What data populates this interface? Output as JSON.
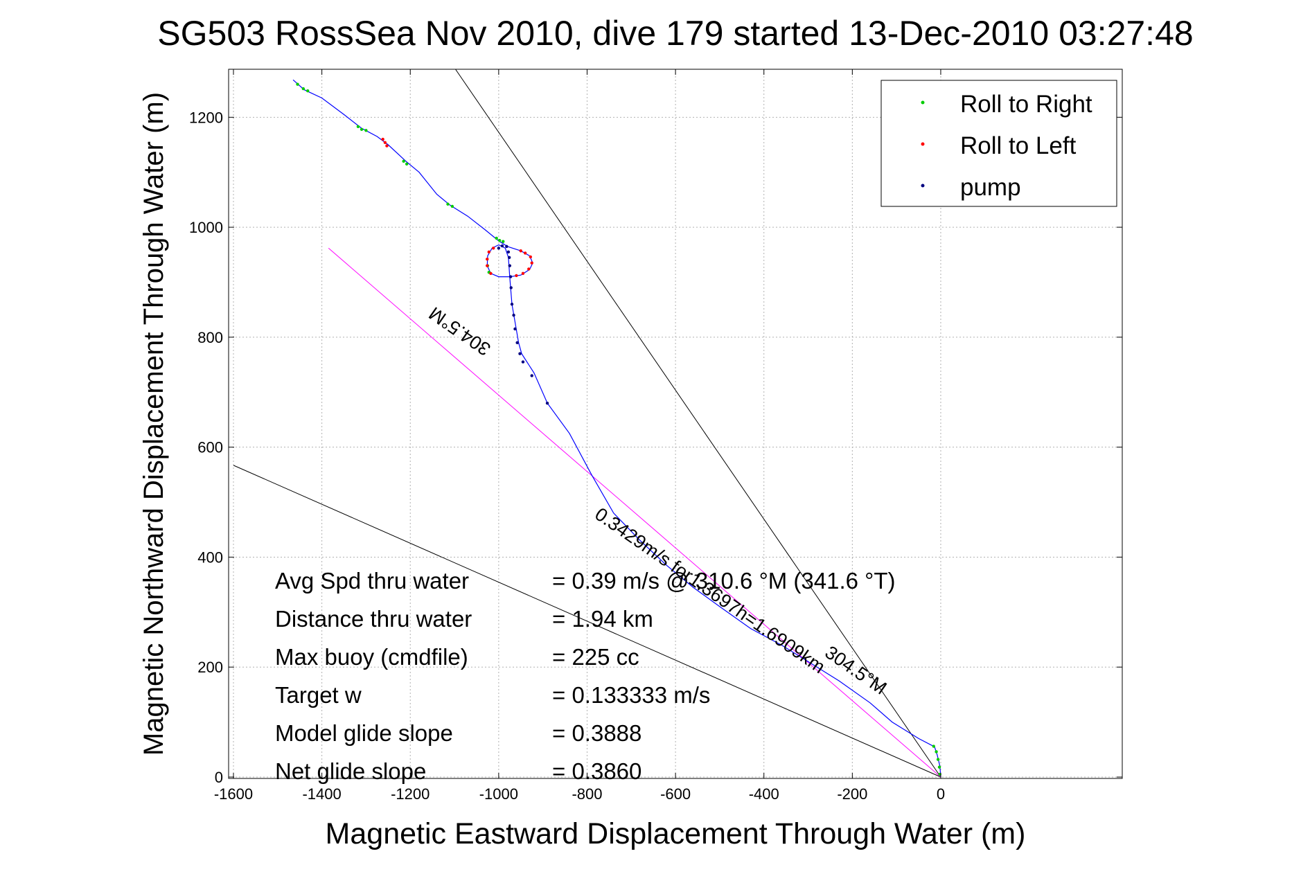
{
  "chart_data": {
    "type": "line",
    "title": "SG503 RossSea Nov 2010, dive 179 started 13-Dec-2010 03:27:48",
    "xlabel": "Magnetic Eastward Displacement Through Water (m)",
    "ylabel": "Magnetic Northward Displacement Through Water (m)",
    "xlim": [
      -1600,
      20
    ],
    "ylim": [
      0,
      1280
    ],
    "xticks": [
      -1600,
      -1400,
      -1200,
      -1000,
      -800,
      -600,
      -400,
      -200,
      0
    ],
    "yticks": [
      0,
      200,
      400,
      600,
      800,
      1000,
      1200
    ],
    "grid": true,
    "legend_position": "top-right",
    "legend": [
      {
        "name": "Roll to Right",
        "color": "#00cc00"
      },
      {
        "name": "Roll to Left",
        "color": "#ff0000"
      },
      {
        "name": "pump",
        "color": "#000080"
      }
    ],
    "track": {
      "color": "#0000ff",
      "points": [
        [
          0,
          0
        ],
        [
          -2,
          20
        ],
        [
          -8,
          40
        ],
        [
          -14,
          55
        ],
        [
          -50,
          70
        ],
        [
          -110,
          100
        ],
        [
          -160,
          135
        ],
        [
          -230,
          175
        ],
        [
          -300,
          210
        ],
        [
          -360,
          240
        ],
        [
          -430,
          270
        ],
        [
          -500,
          310
        ],
        [
          -560,
          345
        ],
        [
          -620,
          385
        ],
        [
          -680,
          430
        ],
        [
          -740,
          480
        ],
        [
          -790,
          550
        ],
        [
          -840,
          625
        ],
        [
          -890,
          680
        ],
        [
          -920,
          735
        ],
        [
          -948,
          770
        ],
        [
          -955,
          790
        ],
        [
          -970,
          860
        ],
        [
          -975,
          910
        ],
        [
          -978,
          945
        ],
        [
          -985,
          962
        ],
        [
          -1000,
          968
        ],
        [
          -1015,
          962
        ],
        [
          -1025,
          948
        ],
        [
          -1026,
          930
        ],
        [
          -1018,
          916
        ],
        [
          -1000,
          910
        ],
        [
          -975,
          910
        ],
        [
          -950,
          913
        ],
        [
          -930,
          923
        ],
        [
          -923,
          935
        ],
        [
          -930,
          948
        ],
        [
          -950,
          957
        ],
        [
          -980,
          965
        ],
        [
          -1000,
          975
        ],
        [
          -1030,
          995
        ],
        [
          -1070,
          1020
        ],
        [
          -1110,
          1040
        ],
        [
          -1140,
          1060
        ],
        [
          -1180,
          1100
        ],
        [
          -1210,
          1120
        ],
        [
          -1250,
          1150
        ],
        [
          -1275,
          1165
        ],
        [
          -1310,
          1180
        ],
        [
          -1350,
          1205
        ],
        [
          -1400,
          1235
        ],
        [
          -1440,
          1250
        ],
        [
          -1465,
          1268
        ]
      ]
    },
    "roll_right_points": [
      [
        -1455,
        1260
      ],
      [
        -1442,
        1252
      ],
      [
        -1432,
        1248
      ],
      [
        -1318,
        1183
      ],
      [
        -1310,
        1178
      ],
      [
        -1300,
        1176
      ],
      [
        -1215,
        1120
      ],
      [
        -1208,
        1115
      ],
      [
        -1115,
        1042
      ],
      [
        -1105,
        1038
      ],
      [
        -1005,
        980
      ],
      [
        -998,
        976
      ],
      [
        -990,
        974
      ],
      [
        -1025,
        930
      ],
      [
        -1022,
        918
      ],
      [
        -2,
        5
      ],
      [
        -3,
        18
      ],
      [
        -6,
        32
      ],
      [
        -10,
        46
      ],
      [
        -16,
        56
      ]
    ],
    "roll_left_points": [
      [
        -1262,
        1160
      ],
      [
        -1257,
        1154
      ],
      [
        -1253,
        1148
      ],
      [
        -1012,
        962
      ],
      [
        -1022,
        955
      ],
      [
        -1026,
        942
      ],
      [
        -1026,
        930
      ],
      [
        -1018,
        916
      ],
      [
        -960,
        912
      ],
      [
        -945,
        916
      ],
      [
        -932,
        924
      ],
      [
        -925,
        935
      ],
      [
        -928,
        946
      ],
      [
        -940,
        953
      ],
      [
        -950,
        957
      ]
    ],
    "pump_points": [
      [
        -982,
        965
      ],
      [
        -992,
        966
      ],
      [
        -1000,
        962
      ],
      [
        -978,
        955
      ],
      [
        -976,
        945
      ],
      [
        -975,
        930
      ],
      [
        -973,
        910
      ],
      [
        -972,
        890
      ],
      [
        -970,
        860
      ],
      [
        -966,
        840
      ],
      [
        -963,
        815
      ],
      [
        -958,
        790
      ],
      [
        -952,
        770
      ],
      [
        -945,
        755
      ],
      [
        -925,
        730
      ],
      [
        -890,
        680
      ]
    ],
    "reference_lines": [
      {
        "color": "#000000",
        "points": [
          [
            0,
            0
          ],
          [
            -1600,
            567
          ]
        ]
      },
      {
        "color": "#000000",
        "points": [
          [
            0,
            0
          ],
          [
            -1100,
            1290
          ]
        ]
      },
      {
        "color": "#ff00ff",
        "points": [
          [
            0,
            0
          ],
          [
            -1385,
            962
          ]
        ]
      }
    ],
    "annotations": [
      {
        "text": "304.5°M",
        "x": -1080,
        "y": 820,
        "angle": 214.8
      },
      {
        "text": "0.3429m/s for1.3697h=1.6909km",
        "x": -530,
        "y": 330,
        "angle": 34.8
      },
      {
        "text": "304.5°M",
        "x": -200,
        "y": 185,
        "angle": 34.8
      }
    ],
    "stats": [
      {
        "label": "Avg Spd thru water",
        "value": "=  0.39 m/s @ 310.6 °M (341.6 °T)"
      },
      {
        "label": "Distance thru water",
        "value": "=  1.94 km"
      },
      {
        "label": "Max buoy (cmdfile)",
        "value": "= 225 cc"
      },
      {
        "label": "Target w",
        "value": "= 0.133333 m/s"
      },
      {
        "label": "Model glide slope",
        "value": "= 0.3888"
      },
      {
        "label": "Net glide slope",
        "value": "= 0.3860"
      }
    ]
  }
}
